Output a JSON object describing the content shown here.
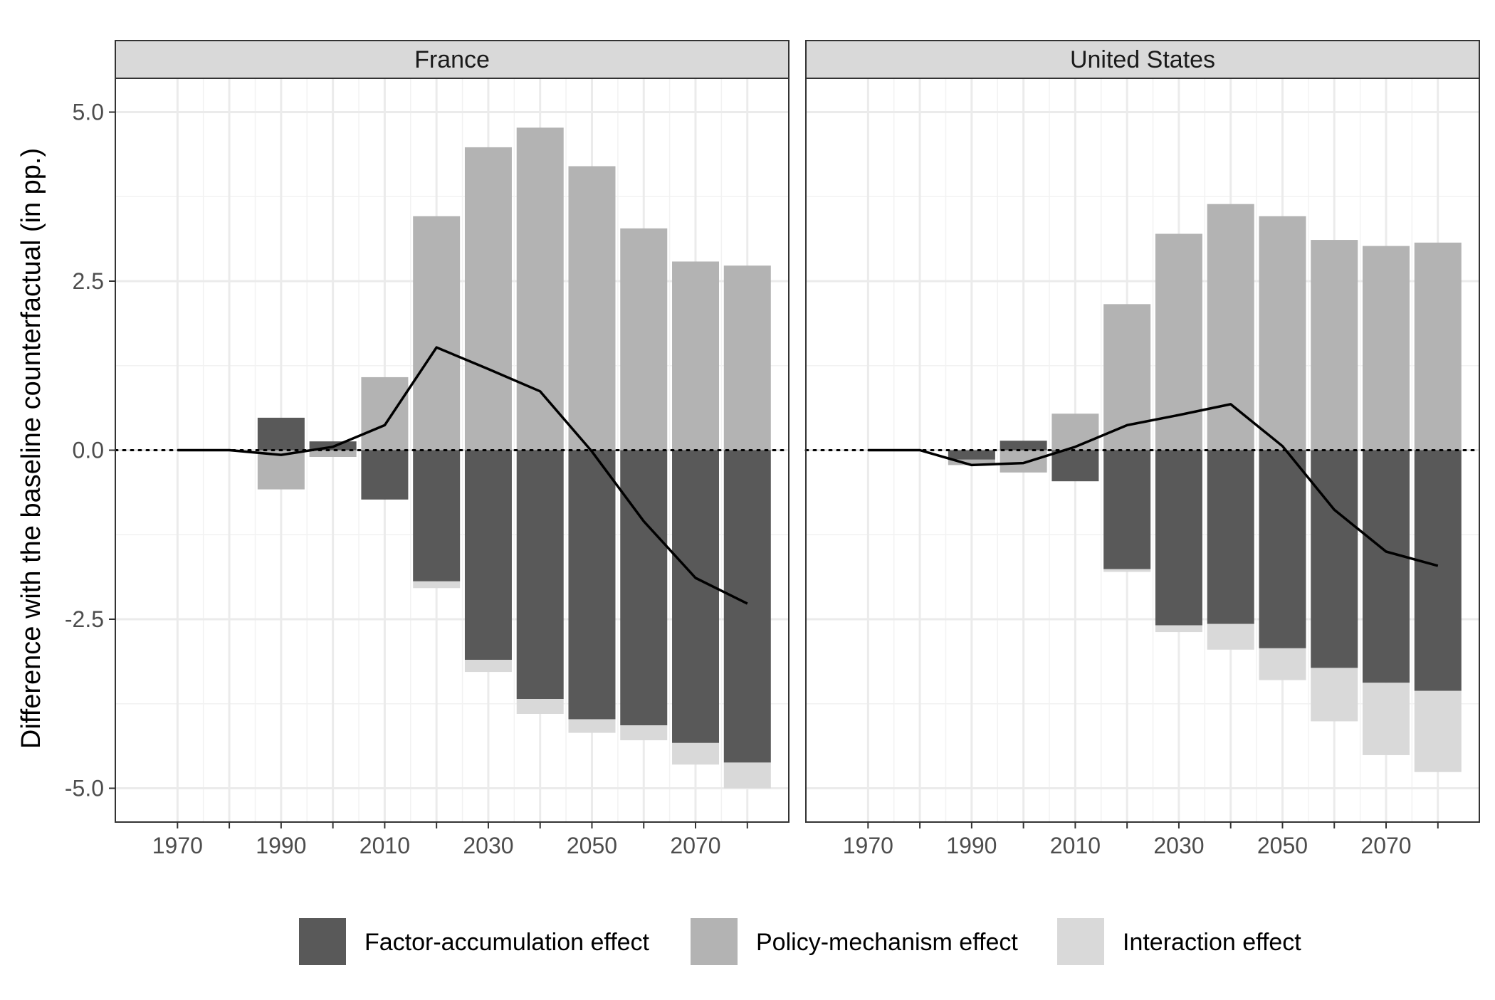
{
  "chart_data": {
    "type": "bar",
    "subtype": "stacked-bar-with-line, faceted",
    "ylabel": "Difference with the baseline counterfactual (in pp.)",
    "ylim": [
      -5.5,
      5.5
    ],
    "y_ticks": [
      -5.0,
      -2.5,
      0.0,
      2.5,
      5.0
    ],
    "y_tick_labels": [
      "-5.0",
      "-2.5",
      "0.0",
      "2.5",
      "5.0"
    ],
    "xlim": [
      1958,
      2088
    ],
    "x_ticks": [
      1970,
      1990,
      2010,
      2030,
      2050,
      2070
    ],
    "x_tick_labels": [
      "1970",
      "1990",
      "2010",
      "2030",
      "2050",
      "2070"
    ],
    "x_minor_ticks": [
      1970,
      1980,
      1990,
      2000,
      2010,
      2020,
      2030,
      2040,
      2050,
      2060,
      2070,
      2080
    ],
    "zero_line": "dotted",
    "grid": true,
    "legend_position": "bottom",
    "legend": [
      {
        "key": "factor",
        "label": "Factor-accumulation effect",
        "color": "#595959"
      },
      {
        "key": "policy",
        "label": "Policy-mechanism effect",
        "color": "#b3b3b3"
      },
      {
        "key": "interaction",
        "label": "Interaction effect",
        "color": "#d9d9d9"
      }
    ],
    "line_color": "#000000",
    "facets": [
      {
        "title": "France",
        "x": [
          1970,
          1980,
          1990,
          2000,
          2010,
          2020,
          2030,
          2040,
          2050,
          2060,
          2070,
          2080
        ],
        "factor": [
          0,
          0,
          0.48,
          0.13,
          -0.73,
          -1.94,
          -3.1,
          -3.68,
          -3.98,
          -4.07,
          -4.33,
          -4.62
        ],
        "policy": [
          0,
          0,
          -0.58,
          -0.1,
          1.08,
          3.46,
          4.48,
          4.77,
          4.2,
          3.28,
          2.79,
          2.73
        ],
        "interaction": [
          0,
          0,
          0,
          0,
          0,
          -0.1,
          -0.18,
          -0.22,
          -0.2,
          -0.22,
          -0.32,
          -0.38
        ],
        "line": [
          0,
          0,
          -0.07,
          0.05,
          0.37,
          1.52,
          1.2,
          0.87,
          -0.02,
          -1.05,
          -1.89,
          -2.27
        ]
      },
      {
        "title": "United States",
        "x": [
          1970,
          1980,
          1990,
          2000,
          2010,
          2020,
          2030,
          2040,
          2050,
          2060,
          2070,
          2080
        ],
        "factor": [
          0,
          0,
          -0.14,
          0.14,
          -0.46,
          -1.76,
          -2.59,
          -2.57,
          -2.93,
          -3.22,
          -3.44,
          -3.56
        ],
        "policy": [
          0,
          0,
          -0.08,
          -0.33,
          0.54,
          2.16,
          3.2,
          3.64,
          3.46,
          3.11,
          3.02,
          3.07
        ],
        "interaction": [
          0,
          0,
          0,
          0,
          0,
          -0.04,
          -0.1,
          -0.38,
          -0.47,
          -0.79,
          -1.07,
          -1.2
        ],
        "line": [
          0,
          0,
          -0.22,
          -0.19,
          0.05,
          0.37,
          0.52,
          0.68,
          0.06,
          -0.88,
          -1.5,
          -1.71
        ]
      }
    ]
  }
}
